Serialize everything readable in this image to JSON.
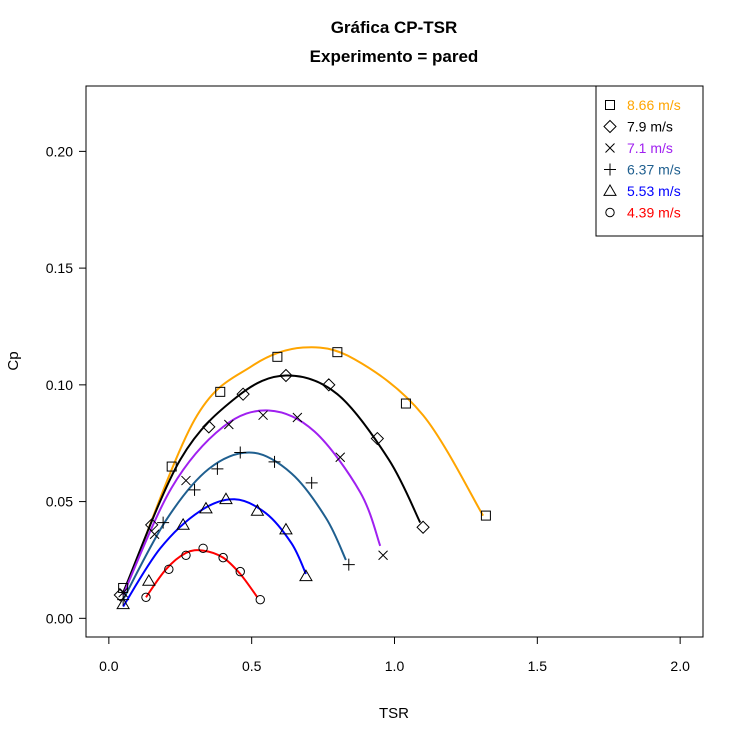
{
  "chart_data": {
    "type": "scatter",
    "title": "Gráfica CP-TSR",
    "subtitle": "Experimento = pared",
    "xlabel": "TSR",
    "ylabel": "Cp",
    "xlim": [
      -0.08,
      2.08
    ],
    "ylim": [
      -0.008,
      0.228
    ],
    "xticks": [
      "0.0",
      "0.5",
      "1.0",
      "1.5",
      "2.0"
    ],
    "yticks": [
      "0.00",
      "0.05",
      "0.10",
      "0.15",
      "0.20"
    ],
    "legend_position": "top-right",
    "series": [
      {
        "name": "8.66 m/s",
        "marker": "square",
        "color": "#FFA500",
        "points": [
          [
            0.05,
            0.013
          ],
          [
            0.22,
            0.065
          ],
          [
            0.39,
            0.097
          ],
          [
            0.59,
            0.112
          ],
          [
            0.8,
            0.114
          ],
          [
            1.04,
            0.092
          ],
          [
            1.32,
            0.044
          ]
        ],
        "curve": [
          [
            0.06,
            0.013
          ],
          [
            0.3,
            0.085
          ],
          [
            0.5,
            0.108
          ],
          [
            0.68,
            0.116
          ],
          [
            0.86,
            0.111
          ],
          [
            1.1,
            0.087
          ],
          [
            1.31,
            0.044
          ]
        ]
      },
      {
        "name": "7.9 m/s",
        "marker": "diamond",
        "color": "#000000",
        "points": [
          [
            0.04,
            0.01
          ],
          [
            0.15,
            0.04
          ],
          [
            0.35,
            0.082
          ],
          [
            0.47,
            0.096
          ],
          [
            0.62,
            0.104
          ],
          [
            0.77,
            0.1
          ],
          [
            0.94,
            0.077
          ],
          [
            1.1,
            0.039
          ]
        ],
        "curve": [
          [
            0.05,
            0.011
          ],
          [
            0.25,
            0.068
          ],
          [
            0.45,
            0.095
          ],
          [
            0.62,
            0.104
          ],
          [
            0.8,
            0.096
          ],
          [
            0.98,
            0.068
          ],
          [
            1.09,
            0.041
          ]
        ]
      },
      {
        "name": "7.1 m/s",
        "marker": "x",
        "color": "#A020F0",
        "points": [
          [
            0.05,
            0.011
          ],
          [
            0.16,
            0.036
          ],
          [
            0.27,
            0.059
          ],
          [
            0.42,
            0.083
          ],
          [
            0.54,
            0.087
          ],
          [
            0.66,
            0.086
          ],
          [
            0.81,
            0.069
          ],
          [
            0.96,
            0.027
          ]
        ],
        "curve": [
          [
            0.05,
            0.01
          ],
          [
            0.22,
            0.056
          ],
          [
            0.4,
            0.082
          ],
          [
            0.56,
            0.089
          ],
          [
            0.72,
            0.08
          ],
          [
            0.88,
            0.054
          ],
          [
            0.95,
            0.031
          ]
        ]
      },
      {
        "name": "6.37 m/s",
        "marker": "plus",
        "color": "#1F5F8F",
        "points": [
          [
            0.05,
            0.008
          ],
          [
            0.19,
            0.041
          ],
          [
            0.3,
            0.055
          ],
          [
            0.38,
            0.064
          ],
          [
            0.46,
            0.071
          ],
          [
            0.58,
            0.067
          ],
          [
            0.71,
            0.058
          ],
          [
            0.84,
            0.023
          ]
        ],
        "curve": [
          [
            0.05,
            0.008
          ],
          [
            0.2,
            0.042
          ],
          [
            0.35,
            0.064
          ],
          [
            0.5,
            0.071
          ],
          [
            0.64,
            0.062
          ],
          [
            0.76,
            0.043
          ],
          [
            0.83,
            0.025
          ]
        ]
      },
      {
        "name": "5.53 m/s",
        "marker": "triangle",
        "color": "#0000FF",
        "points": [
          [
            0.05,
            0.006
          ],
          [
            0.14,
            0.016
          ],
          [
            0.26,
            0.04
          ],
          [
            0.34,
            0.047
          ],
          [
            0.41,
            0.051
          ],
          [
            0.52,
            0.046
          ],
          [
            0.62,
            0.038
          ],
          [
            0.69,
            0.018
          ]
        ],
        "curve": [
          [
            0.05,
            0.005
          ],
          [
            0.18,
            0.03
          ],
          [
            0.32,
            0.046
          ],
          [
            0.44,
            0.051
          ],
          [
            0.55,
            0.045
          ],
          [
            0.64,
            0.032
          ],
          [
            0.69,
            0.019
          ]
        ]
      },
      {
        "name": "4.39 m/s",
        "marker": "circle",
        "color": "#FF0000",
        "points": [
          [
            0.13,
            0.009
          ],
          [
            0.21,
            0.021
          ],
          [
            0.27,
            0.027
          ],
          [
            0.33,
            0.03
          ],
          [
            0.4,
            0.026
          ],
          [
            0.46,
            0.02
          ],
          [
            0.53,
            0.008
          ]
        ],
        "curve": [
          [
            0.13,
            0.009
          ],
          [
            0.2,
            0.021
          ],
          [
            0.27,
            0.028
          ],
          [
            0.33,
            0.029
          ],
          [
            0.4,
            0.026
          ],
          [
            0.46,
            0.019
          ],
          [
            0.52,
            0.009
          ]
        ]
      }
    ]
  }
}
